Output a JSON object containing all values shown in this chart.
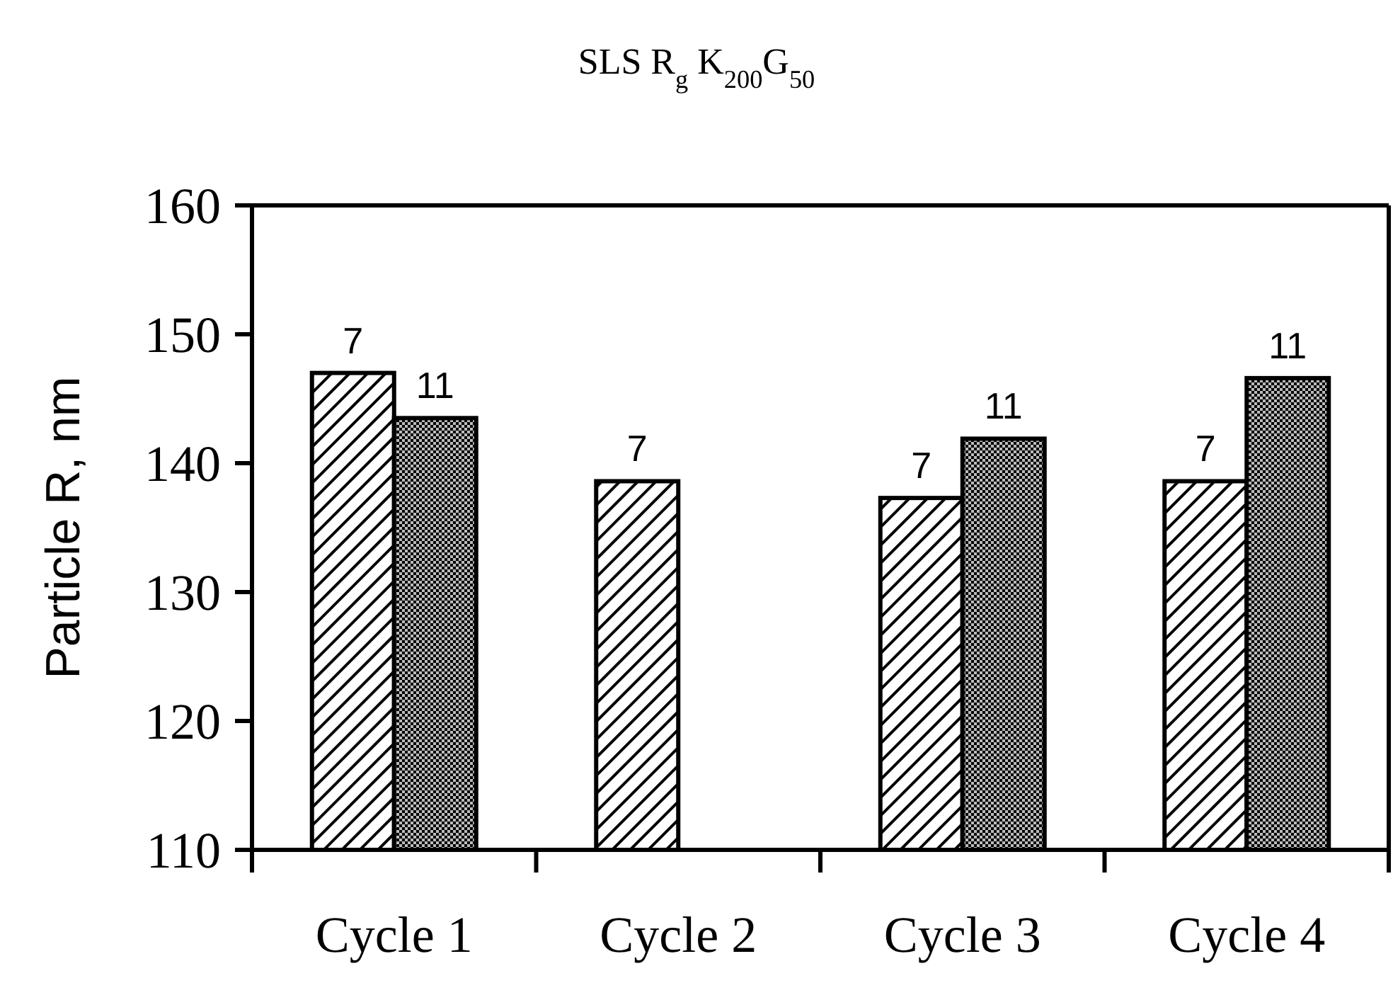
{
  "chart_data": {
    "type": "bar",
    "title": "SLS R$_{g}$ K$_{200}$G$_{50}$",
    "ylabel": "Particle R, nm",
    "categories": [
      "Cycle 1",
      "Cycle 2",
      "Cycle 3",
      "Cycle 4"
    ],
    "series": [
      {
        "name": "7",
        "color": "#000000",
        "values": [
          147.0,
          138.6,
          137.3,
          138.6
        ]
      },
      {
        "name": "11",
        "color": "#000000",
        "values": [
          143.5,
          null,
          141.9,
          146.6
        ]
      }
    ],
    "ylim": [
      110,
      160
    ],
    "yticks": [
      110,
      120,
      130,
      140,
      150,
      160
    ],
    "grid": false
  }
}
